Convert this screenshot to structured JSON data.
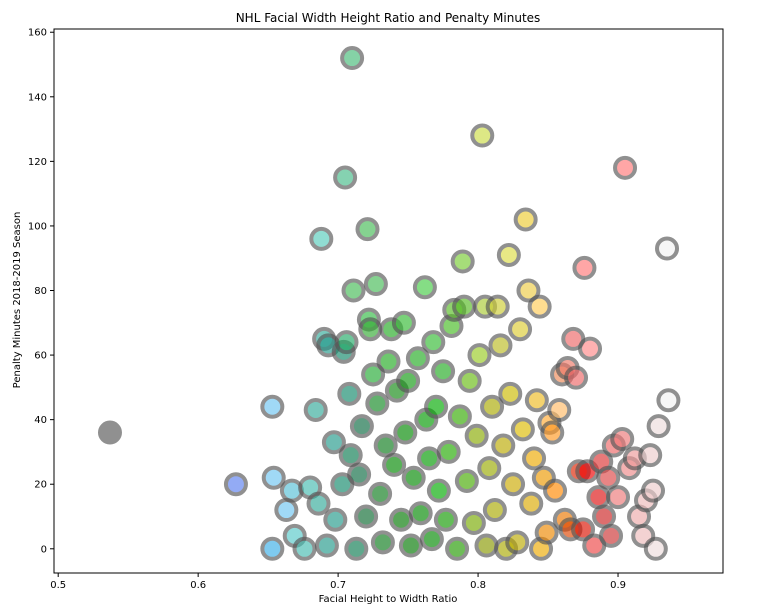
{
  "chart_data": {
    "type": "scatter",
    "title": "NHL Facial Width Height Ratio and Penalty Minutes",
    "xlabel": "Facial Height to Width Ratio",
    "ylabel": "Penalty Minutes 2018-2019 Season",
    "xlim": [
      0.497,
      0.975
    ],
    "ylim": [
      -7.5,
      161
    ],
    "xticks": [
      "0.5",
      "0.6",
      "0.7",
      "0.8",
      "0.9"
    ],
    "yticks": [
      "0",
      "20",
      "40",
      "60",
      "80",
      "100",
      "120",
      "140",
      "160"
    ],
    "grid": false,
    "legend": "none",
    "marker_style": {
      "edge_color": "#555555",
      "opacity": 0.65
    },
    "points": [
      {
        "x": 0.537,
        "y": 36,
        "color": "#555555"
      },
      {
        "x": 0.627,
        "y": 20,
        "color": "#5a7ff0"
      },
      {
        "x": 0.653,
        "y": 44,
        "color": "#6ec6f2"
      },
      {
        "x": 0.654,
        "y": 22,
        "color": "#6ec6f2"
      },
      {
        "x": 0.653,
        "y": 0,
        "color": "#3aaee8"
      },
      {
        "x": 0.663,
        "y": 12,
        "color": "#6ec6f2"
      },
      {
        "x": 0.667,
        "y": 18,
        "color": "#55c0d6"
      },
      {
        "x": 0.669,
        "y": 4,
        "color": "#55c8c8"
      },
      {
        "x": 0.676,
        "y": 0,
        "color": "#44bbb0"
      },
      {
        "x": 0.68,
        "y": 19,
        "color": "#44bbb0"
      },
      {
        "x": 0.684,
        "y": 43,
        "color": "#33aa99"
      },
      {
        "x": 0.686,
        "y": 14,
        "color": "#33aa99"
      },
      {
        "x": 0.688,
        "y": 96,
        "color": "#55ccbb"
      },
      {
        "x": 0.69,
        "y": 65,
        "color": "#33aa99"
      },
      {
        "x": 0.692,
        "y": 1,
        "color": "#22998a"
      },
      {
        "x": 0.693,
        "y": 63,
        "color": "#22998a"
      },
      {
        "x": 0.697,
        "y": 33,
        "color": "#22998a"
      },
      {
        "x": 0.698,
        "y": 9,
        "color": "#22998a"
      },
      {
        "x": 0.703,
        "y": 20,
        "color": "#11886a"
      },
      {
        "x": 0.704,
        "y": 61,
        "color": "#11886a"
      },
      {
        "x": 0.705,
        "y": 115,
        "color": "#44bb88"
      },
      {
        "x": 0.706,
        "y": 64,
        "color": "#22aa66"
      },
      {
        "x": 0.708,
        "y": 48,
        "color": "#11886a"
      },
      {
        "x": 0.709,
        "y": 29,
        "color": "#0a7a50"
      },
      {
        "x": 0.71,
        "y": 152,
        "color": "#44bb77"
      },
      {
        "x": 0.711,
        "y": 80,
        "color": "#44bb55"
      },
      {
        "x": 0.713,
        "y": 0,
        "color": "#0a7a50"
      },
      {
        "x": 0.715,
        "y": 23,
        "color": "#0a6a40"
      },
      {
        "x": 0.717,
        "y": 38,
        "color": "#0a6a40"
      },
      {
        "x": 0.72,
        "y": 10,
        "color": "#0a6a30"
      },
      {
        "x": 0.721,
        "y": 99,
        "color": "#44bb55"
      },
      {
        "x": 0.722,
        "y": 71,
        "color": "#33bb44"
      },
      {
        "x": 0.723,
        "y": 68,
        "color": "#33aa33"
      },
      {
        "x": 0.725,
        "y": 54,
        "color": "#22aa33"
      },
      {
        "x": 0.727,
        "y": 82,
        "color": "#44bb55"
      },
      {
        "x": 0.728,
        "y": 45,
        "color": "#118822"
      },
      {
        "x": 0.73,
        "y": 17,
        "color": "#0a7a1a"
      },
      {
        "x": 0.732,
        "y": 2,
        "color": "#0a7a1a"
      },
      {
        "x": 0.734,
        "y": 32,
        "color": "#0a7a1a"
      },
      {
        "x": 0.736,
        "y": 58,
        "color": "#22aa22"
      },
      {
        "x": 0.738,
        "y": 68,
        "color": "#22aa22"
      },
      {
        "x": 0.74,
        "y": 26,
        "color": "#008800"
      },
      {
        "x": 0.742,
        "y": 49,
        "color": "#118811"
      },
      {
        "x": 0.745,
        "y": 9,
        "color": "#007700"
      },
      {
        "x": 0.747,
        "y": 70,
        "color": "#33bb33"
      },
      {
        "x": 0.748,
        "y": 36,
        "color": "#008800"
      },
      {
        "x": 0.75,
        "y": 52,
        "color": "#119911"
      },
      {
        "x": 0.752,
        "y": 1,
        "color": "#007700"
      },
      {
        "x": 0.754,
        "y": 22,
        "color": "#008800"
      },
      {
        "x": 0.757,
        "y": 59,
        "color": "#22aa22"
      },
      {
        "x": 0.759,
        "y": 11,
        "color": "#008800"
      },
      {
        "x": 0.762,
        "y": 81,
        "color": "#44cc44"
      },
      {
        "x": 0.763,
        "y": 40,
        "color": "#009900"
      },
      {
        "x": 0.765,
        "y": 28,
        "color": "#009900"
      },
      {
        "x": 0.767,
        "y": 3,
        "color": "#008800"
      },
      {
        "x": 0.768,
        "y": 64,
        "color": "#33bb33"
      },
      {
        "x": 0.77,
        "y": 44,
        "color": "#00aa00"
      },
      {
        "x": 0.772,
        "y": 18,
        "color": "#00aa00"
      },
      {
        "x": 0.775,
        "y": 55,
        "color": "#22aa22"
      },
      {
        "x": 0.777,
        "y": 9,
        "color": "#119900"
      },
      {
        "x": 0.779,
        "y": 30,
        "color": "#22aa00"
      },
      {
        "x": 0.781,
        "y": 69,
        "color": "#44bb22"
      },
      {
        "x": 0.783,
        "y": 74,
        "color": "#55bb22"
      },
      {
        "x": 0.785,
        "y": 0,
        "color": "#229900"
      },
      {
        "x": 0.787,
        "y": 41,
        "color": "#33aa00"
      },
      {
        "x": 0.789,
        "y": 89,
        "color": "#77cc33"
      },
      {
        "x": 0.79,
        "y": 75,
        "color": "#55bb22"
      },
      {
        "x": 0.792,
        "y": 21,
        "color": "#44aa00"
      },
      {
        "x": 0.794,
        "y": 52,
        "color": "#66bb11"
      },
      {
        "x": 0.797,
        "y": 8,
        "color": "#77aa00"
      },
      {
        "x": 0.799,
        "y": 35,
        "color": "#88aa00"
      },
      {
        "x": 0.801,
        "y": 60,
        "color": "#99cc22"
      },
      {
        "x": 0.803,
        "y": 128,
        "color": "#ccdd44"
      },
      {
        "x": 0.805,
        "y": 75,
        "color": "#aacc33"
      },
      {
        "x": 0.806,
        "y": 1,
        "color": "#889900"
      },
      {
        "x": 0.808,
        "y": 25,
        "color": "#99aa00"
      },
      {
        "x": 0.81,
        "y": 44,
        "color": "#aaaa00"
      },
      {
        "x": 0.812,
        "y": 12,
        "color": "#aaaa00"
      },
      {
        "x": 0.814,
        "y": 75,
        "color": "#cccc33"
      },
      {
        "x": 0.816,
        "y": 63,
        "color": "#bbbb22"
      },
      {
        "x": 0.818,
        "y": 32,
        "color": "#bbaa00"
      },
      {
        "x": 0.82,
        "y": 0,
        "color": "#aaaa00"
      },
      {
        "x": 0.822,
        "y": 91,
        "color": "#dddd44"
      },
      {
        "x": 0.823,
        "y": 48,
        "color": "#ccbb00"
      },
      {
        "x": 0.825,
        "y": 20,
        "color": "#ccaa00"
      },
      {
        "x": 0.828,
        "y": 2,
        "color": "#bbaa00"
      },
      {
        "x": 0.83,
        "y": 68,
        "color": "#ddcc33"
      },
      {
        "x": 0.832,
        "y": 37,
        "color": "#ddbb00"
      },
      {
        "x": 0.834,
        "y": 102,
        "color": "#eecc33"
      },
      {
        "x": 0.836,
        "y": 80,
        "color": "#eecc44"
      },
      {
        "x": 0.838,
        "y": 14,
        "color": "#ddaa00"
      },
      {
        "x": 0.84,
        "y": 28,
        "color": "#eeaa00"
      },
      {
        "x": 0.842,
        "y": 46,
        "color": "#eebb22"
      },
      {
        "x": 0.844,
        "y": 75,
        "color": "#ffcc55"
      },
      {
        "x": 0.845,
        "y": 0,
        "color": "#eeaa00"
      },
      {
        "x": 0.847,
        "y": 22,
        "color": "#ee9900"
      },
      {
        "x": 0.849,
        "y": 5,
        "color": "#ee8800"
      },
      {
        "x": 0.851,
        "y": 39,
        "color": "#ffaa33"
      },
      {
        "x": 0.853,
        "y": 36,
        "color": "#ff9922"
      },
      {
        "x": 0.855,
        "y": 18,
        "color": "#ff8800"
      },
      {
        "x": 0.858,
        "y": 43,
        "color": "#ffbb66"
      },
      {
        "x": 0.86,
        "y": 54,
        "color": "#ee8855"
      },
      {
        "x": 0.862,
        "y": 9,
        "color": "#ee7700"
      },
      {
        "x": 0.864,
        "y": 56,
        "color": "#ee7766"
      },
      {
        "x": 0.866,
        "y": 6,
        "color": "#dd4400"
      },
      {
        "x": 0.868,
        "y": 65,
        "color": "#ee6666"
      },
      {
        "x": 0.87,
        "y": 53,
        "color": "#ee6666"
      },
      {
        "x": 0.872,
        "y": 24,
        "color": "#dd2200"
      },
      {
        "x": 0.875,
        "y": 6,
        "color": "#dd1100"
      },
      {
        "x": 0.876,
        "y": 87,
        "color": "#ff7777"
      },
      {
        "x": 0.878,
        "y": 24,
        "color": "#ee0000"
      },
      {
        "x": 0.88,
        "y": 62,
        "color": "#ff8888"
      },
      {
        "x": 0.883,
        "y": 1,
        "color": "#ee4444"
      },
      {
        "x": 0.886,
        "y": 16,
        "color": "#dd1111"
      },
      {
        "x": 0.888,
        "y": 27,
        "color": "#dd3333"
      },
      {
        "x": 0.89,
        "y": 10,
        "color": "#cc2222"
      },
      {
        "x": 0.893,
        "y": 22,
        "color": "#dd4444"
      },
      {
        "x": 0.895,
        "y": 4,
        "color": "#cc3333"
      },
      {
        "x": 0.897,
        "y": 32,
        "color": "#ee6666"
      },
      {
        "x": 0.9,
        "y": 16,
        "color": "#ee7777"
      },
      {
        "x": 0.903,
        "y": 34,
        "color": "#ee7777"
      },
      {
        "x": 0.905,
        "y": 118,
        "color": "#ff7777"
      },
      {
        "x": 0.908,
        "y": 25,
        "color": "#ee8888"
      },
      {
        "x": 0.912,
        "y": 28,
        "color": "#ee9999"
      },
      {
        "x": 0.915,
        "y": 10,
        "color": "#eeaaaa"
      },
      {
        "x": 0.918,
        "y": 4,
        "color": "#eebbbb"
      },
      {
        "x": 0.92,
        "y": 15,
        "color": "#eebbbb"
      },
      {
        "x": 0.923,
        "y": 29,
        "color": "#eecccc"
      },
      {
        "x": 0.925,
        "y": 18,
        "color": "#eecccc"
      },
      {
        "x": 0.927,
        "y": 0,
        "color": "#eedddd"
      },
      {
        "x": 0.929,
        "y": 38,
        "color": "#eedddd"
      },
      {
        "x": 0.935,
        "y": 93,
        "color": "#f2f2f2"
      },
      {
        "x": 0.936,
        "y": 46,
        "color": "#f2f2f2"
      }
    ]
  }
}
